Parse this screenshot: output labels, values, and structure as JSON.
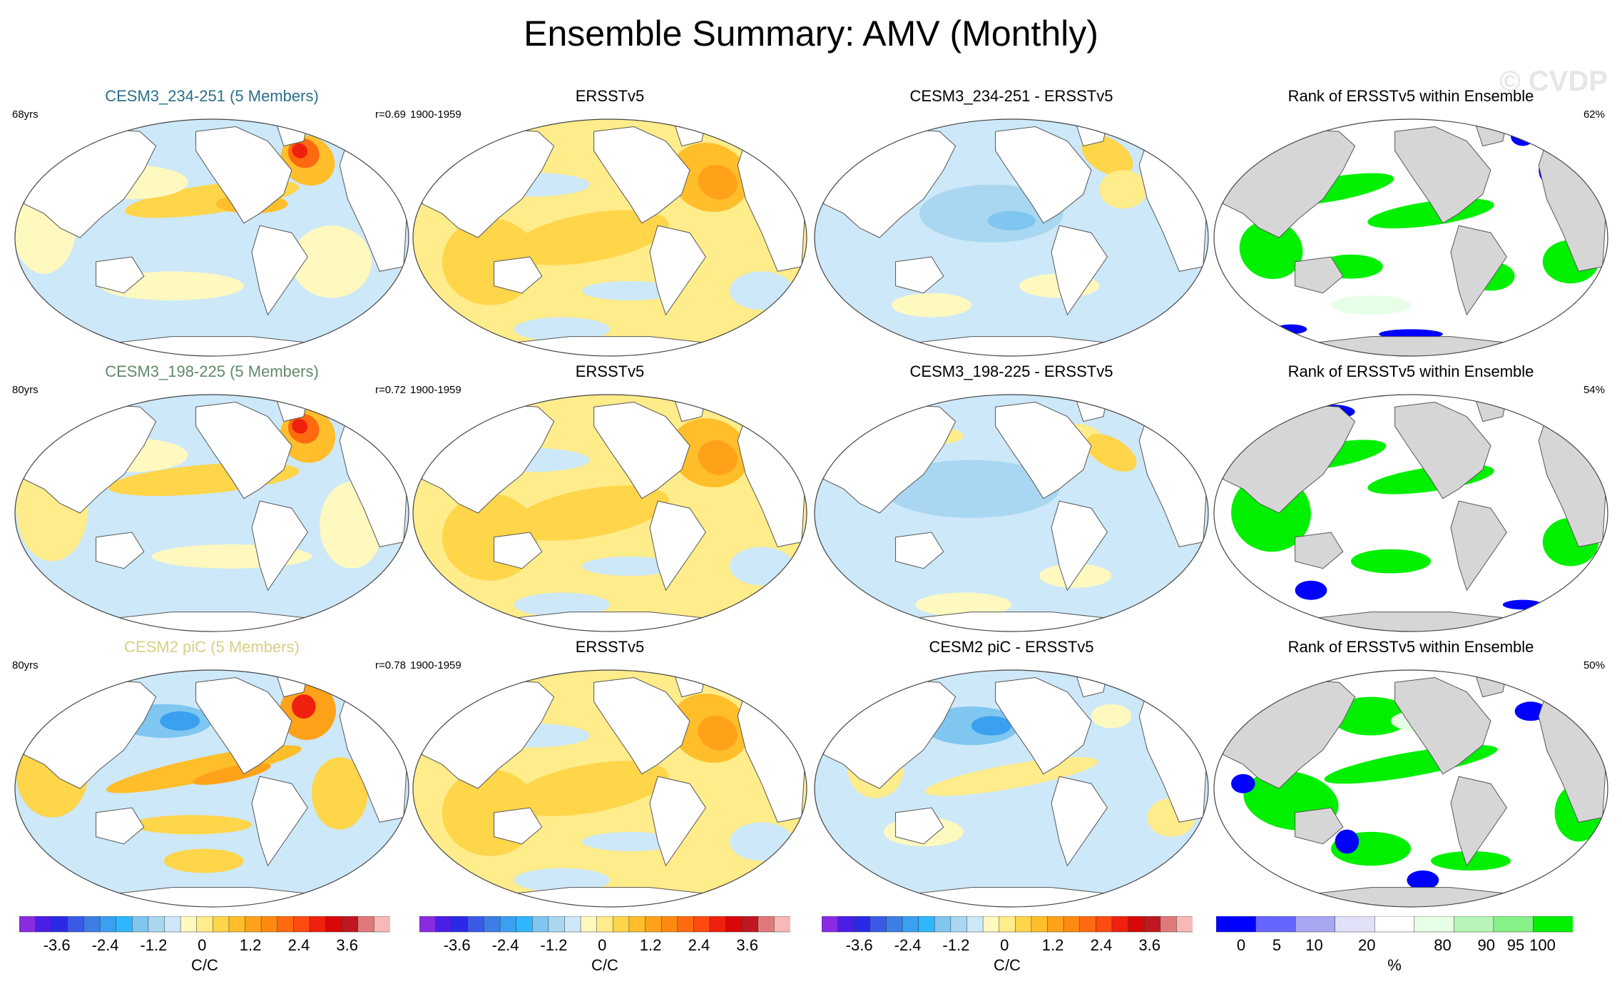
{
  "figure": {
    "title": "Ensemble Summary: AMV (Monthly)",
    "watermark": "© CVDP"
  },
  "rows": [
    {
      "model": {
        "title": "CESM3_234-251 (5 Members)",
        "title_color": "#2a6f8a",
        "left_label": "68yrs",
        "right_label": "r=0.69"
      },
      "obs": {
        "title": "ERSSTv5",
        "left_label": "1900-1959"
      },
      "diff": {
        "title": "CESM3_234-251 - ERSSTv5"
      },
      "rank": {
        "title": "Rank of ERSSTv5 within Ensemble",
        "right_label": "62%"
      }
    },
    {
      "model": {
        "title": "CESM3_198-225 (5 Members)",
        "title_color": "#5f8a6a",
        "left_label": "80yrs",
        "right_label": "r=0.72"
      },
      "obs": {
        "title": "ERSSTv5",
        "left_label": "1900-1959"
      },
      "diff": {
        "title": "CESM3_198-225 - ERSSTv5"
      },
      "rank": {
        "title": "Rank of ERSSTv5 within Ensemble",
        "right_label": "54%"
      }
    },
    {
      "model": {
        "title": "CESM2 piC (5 Members)",
        "title_color": "#d8cf86",
        "left_label": "80yrs",
        "right_label": "r=0.78"
      },
      "obs": {
        "title": "ERSSTv5",
        "left_label": "1900-1959"
      },
      "diff": {
        "title": "CESM2 piC - ERSSTv5"
      },
      "rank": {
        "title": "Rank of ERSSTv5 within Ensemble",
        "right_label": "50%"
      }
    }
  ],
  "colorbars": {
    "anomaly": {
      "unit": "C/C",
      "ticks": [
        "-3.6",
        "-2.4",
        "-1.2",
        "0",
        "1.2",
        "2.4",
        "3.6"
      ],
      "colors": [
        "#8a2be2",
        "#4a1ee6",
        "#2a2ae6",
        "#3a5ae6",
        "#3c7ee6",
        "#3aa0f0",
        "#2cb7ff",
        "#7fc6f0",
        "#a9d7f2",
        "#cde8f8",
        "#fff9c0",
        "#ffec8a",
        "#ffd54a",
        "#ffbe2a",
        "#ffa21a",
        "#ff8a12",
        "#ff6a10",
        "#ff4a10",
        "#f0200e",
        "#d80808",
        "#c01820",
        "#e07a7a",
        "#f8b8b8"
      ]
    },
    "rank": {
      "unit": "%",
      "ticks": [
        "0",
        "5",
        "10",
        "20",
        "80",
        "90",
        "95",
        "100"
      ],
      "colors": [
        "#0000ff",
        "#6666ff",
        "#a8a8f2",
        "#e0e0f8",
        "#ffffff",
        "#e6ffe6",
        "#b8f5b8",
        "#88f088",
        "#00f000"
      ]
    }
  }
}
